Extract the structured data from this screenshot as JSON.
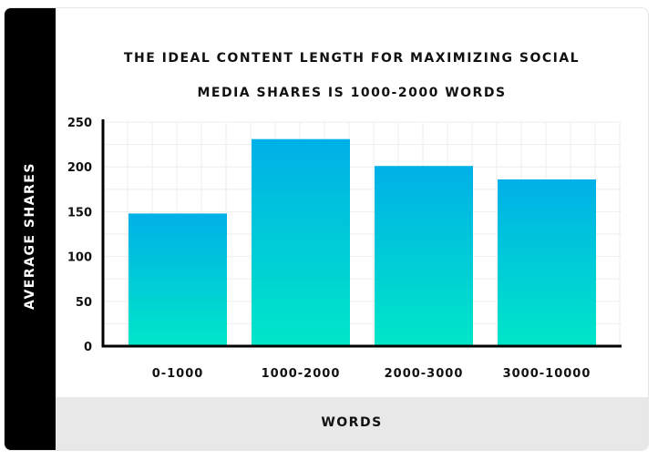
{
  "chart_data": {
    "type": "bar",
    "title_lines": [
      "THE IDEAL CONTENT LENGTH FOR MAXIMIZING SOCIAL",
      "MEDIA SHARES IS 1000-2000 WORDS"
    ],
    "xlabel": "WORDS",
    "ylabel": "AVERAGE SHARES",
    "categories": [
      "0-1000",
      "1000-2000",
      "2000-3000",
      "3000-10000"
    ],
    "values": [
      148,
      231,
      201,
      186
    ],
    "ylim": [
      0,
      250
    ],
    "yticks": [
      "0",
      "50",
      "100",
      "150",
      "200",
      "250"
    ],
    "grid": true,
    "colors": {
      "bar_top": "#00b0e8",
      "bar_bottom": "#00e6c8",
      "axis": "#000000",
      "grid": "#eeeeee"
    }
  }
}
